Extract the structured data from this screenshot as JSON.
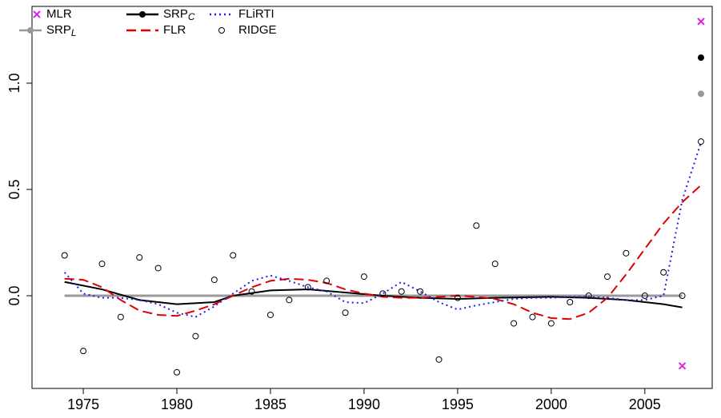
{
  "chart_data": {
    "type": "line",
    "xlim": [
      1972.26,
      2008.6
    ],
    "ylim": [
      -0.436,
      1.361
    ],
    "xticks": [
      1975,
      1980,
      1985,
      1990,
      1995,
      2000,
      2005
    ],
    "yticks": [
      {
        "value": 0,
        "label": "0.0"
      },
      {
        "value": 0.5,
        "label": "0.5"
      },
      {
        "value": 1,
        "label": "1.0"
      }
    ],
    "series": [
      {
        "name": "MLR",
        "style": "cross",
        "color": "#e020e0",
        "x": [
          2007,
          2008
        ],
        "values": [
          -0.33,
          1.29
        ]
      },
      {
        "name": "SRP",
        "subscript": "L",
        "style": "line-point",
        "color": "#999999",
        "x": [
          1974,
          1975,
          1976,
          1977,
          1978,
          1979,
          1980,
          1981,
          1982,
          1983,
          1984,
          1985,
          1986,
          1987,
          1988,
          1989,
          1990,
          1991,
          1992,
          1993,
          1994,
          1995,
          1996,
          1997,
          1998,
          1999,
          2000,
          2001,
          2002,
          2003,
          2004,
          2005,
          2006,
          2007
        ],
        "values": [
          0,
          0,
          0,
          0,
          0,
          0,
          0,
          0,
          0,
          0,
          0,
          0,
          0,
          0,
          0,
          0,
          0,
          0,
          0,
          0,
          0,
          0,
          0,
          0,
          0,
          0,
          0,
          0,
          0,
          0,
          0,
          0,
          0,
          0
        ],
        "point": {
          "x": 2008,
          "value": 0.95
        }
      },
      {
        "name": "SRP",
        "subscript": "C",
        "style": "line-point",
        "color": "#000000",
        "x": [
          1974,
          1976,
          1978,
          1980,
          1982,
          1983,
          1985,
          1987,
          1989,
          1991,
          1993,
          1995,
          1997,
          2000,
          2002,
          2004,
          2006,
          2007
        ],
        "values": [
          0.065,
          0.03,
          -0.02,
          -0.04,
          -0.03,
          0,
          0.025,
          0.03,
          0.015,
          0,
          -0.01,
          -0.015,
          -0.01,
          -0.005,
          -0.01,
          -0.02,
          -0.04,
          -0.055
        ],
        "point": {
          "x": 2008,
          "value": 1.12
        }
      },
      {
        "name": "FLR",
        "style": "dashed",
        "color": "#e00000",
        "x": [
          1974,
          1975,
          1976,
          1977,
          1978,
          1979,
          1980,
          1981,
          1982,
          1983,
          1984,
          1985,
          1986,
          1987,
          1988,
          1989,
          1990,
          1991,
          1992,
          1993,
          1994,
          1995,
          1996,
          1997,
          1998,
          1999,
          2000,
          2001,
          2002,
          2003,
          2004,
          2005,
          2006,
          2007,
          2008
        ],
        "values": [
          0.08,
          0.075,
          0.04,
          -0.02,
          -0.07,
          -0.09,
          -0.095,
          -0.07,
          -0.04,
          0,
          0.04,
          0.07,
          0.08,
          0.075,
          0.06,
          0.03,
          0.01,
          -0.005,
          -0.01,
          -0.01,
          -0.005,
          0,
          -0.005,
          -0.015,
          -0.04,
          -0.08,
          -0.105,
          -0.11,
          -0.08,
          -0.01,
          0.1,
          0.22,
          0.34,
          0.44,
          0.52
        ]
      },
      {
        "name": "FLiRTI",
        "style": "dotted",
        "color": "#2020e0",
        "x": [
          1974,
          1975,
          1976,
          1977,
          1978,
          1979,
          1980,
          1981,
          1982,
          1983,
          1984,
          1985,
          1986,
          1987,
          1988,
          1989,
          1990,
          1991,
          1992,
          1993,
          1994,
          1995,
          1996,
          1997,
          1998,
          1999,
          2000,
          2001,
          2002,
          2003,
          2004,
          2005,
          2006,
          2007,
          2008
        ],
        "values": [
          0.11,
          0.01,
          -0.01,
          -0.01,
          -0.02,
          -0.04,
          -0.08,
          -0.1,
          -0.05,
          0.01,
          0.07,
          0.095,
          0.07,
          0.04,
          0.02,
          -0.03,
          -0.035,
          0.01,
          0.065,
          0.02,
          -0.03,
          -0.065,
          -0.045,
          -0.03,
          -0.015,
          -0.01,
          -0.01,
          -0.005,
          -0.005,
          -0.01,
          -0.02,
          -0.02,
          0,
          0.45,
          0.72
        ]
      },
      {
        "name": "RIDGE",
        "style": "circle",
        "color": "#000000",
        "x": [
          1974,
          1975,
          1976,
          1977,
          1978,
          1979,
          1980,
          1981,
          1982,
          1983,
          1984,
          1985,
          1986,
          1987,
          1988,
          1989,
          1990,
          1991,
          1992,
          1993,
          1994,
          1995,
          1996,
          1997,
          1998,
          1999,
          2000,
          2001,
          2002,
          2003,
          2004,
          2005,
          2006,
          2007,
          2008
        ],
        "values": [
          0.19,
          -0.26,
          0.15,
          -0.1,
          0.18,
          0.13,
          -0.36,
          -0.19,
          0.075,
          0.19,
          0.02,
          -0.09,
          -0.02,
          0.04,
          0.07,
          -0.08,
          0.09,
          0.01,
          0.02,
          0.02,
          -0.3,
          -0.01,
          0.33,
          0.15,
          -0.13,
          -0.1,
          -0.13,
          -0.03,
          0,
          0.09,
          0.2,
          0,
          0.11,
          0,
          0.725
        ]
      }
    ]
  }
}
